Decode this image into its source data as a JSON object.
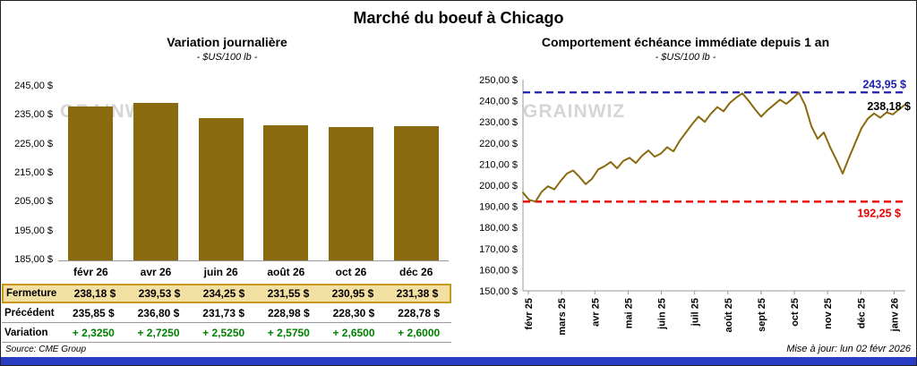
{
  "page": {
    "title": "Marché du boeuf à Chicago",
    "source": "Source: CME Group",
    "updated": "Mise à jour: lun 02 févr 2026",
    "accent_blue": "#2b3cc4",
    "watermark": "GRAINWIZ"
  },
  "chart_data": [
    {
      "type": "bar",
      "title": "Variation  journalière",
      "subtitle": "- $US/100 lb -",
      "categories": [
        "févr 26",
        "avr 26",
        "juin 26",
        "août 26",
        "oct 26",
        "déc 26"
      ],
      "values": [
        238.18,
        239.53,
        234.25,
        231.55,
        230.95,
        231.38
      ],
      "ylim": [
        185,
        245
      ],
      "ytick_labels": [
        "245,00 $",
        "235,00 $",
        "225,00 $",
        "215,00 $",
        "205,00 $",
        "195,00 $",
        "185,00 $"
      ],
      "bar_color": "#8a6a0f",
      "grid": false,
      "table": {
        "rows": [
          {
            "label": "Fermeture",
            "style": "highlight",
            "values": [
              "238,18  $",
              "239,53  $",
              "234,25  $",
              "231,55  $",
              "230,95  $",
              "231,38  $"
            ]
          },
          {
            "label": "Précédent",
            "style": "plain",
            "values": [
              "235,85  $",
              "236,80  $",
              "231,73  $",
              "228,98  $",
              "228,30  $",
              "228,78  $"
            ]
          },
          {
            "label": "Variation",
            "style": "green",
            "values": [
              "+ 2,3250",
              "+ 2,7250",
              "+ 2,5250",
              "+ 2,5750",
              "+ 2,6500",
              "+ 2,6000"
            ]
          }
        ]
      }
    },
    {
      "type": "line",
      "title": "Comportement  échéance  immédiate  depuis  1 an",
      "subtitle": "- $US/100 lb -",
      "x_labels": [
        "févr 25",
        "mars 25",
        "avr 25",
        "mai 25",
        "juin 25",
        "juil 25",
        "août 25",
        "sept 25",
        "oct 25",
        "nov 25",
        "déc 25",
        "janv 26"
      ],
      "values": [
        196.5,
        193.0,
        192.3,
        197.0,
        199.5,
        198.0,
        202.0,
        205.5,
        207.0,
        204.0,
        200.5,
        203.0,
        207.5,
        209.0,
        211.0,
        208.0,
        211.5,
        213.0,
        210.5,
        214.0,
        216.5,
        213.5,
        215.0,
        218.0,
        216.0,
        221.0,
        225.0,
        229.0,
        232.5,
        230.0,
        234.0,
        237.0,
        235.0,
        239.0,
        241.5,
        243.5,
        240.0,
        236.0,
        232.5,
        235.5,
        238.0,
        240.5,
        238.5,
        241.0,
        243.9,
        238.0,
        228.0,
        222.0,
        225.0,
        218.0,
        212.0,
        205.5,
        213.0,
        220.0,
        227.0,
        231.5,
        234.0,
        232.0,
        234.5,
        233.5,
        236.0,
        238.2
      ],
      "ylim": [
        150,
        250
      ],
      "ytick_labels": [
        "250,00 $",
        "240,00 $",
        "230,00 $",
        "220,00 $",
        "210,00 $",
        "200,00 $",
        "190,00 $",
        "180,00 $",
        "170,00 $",
        "160,00 $",
        "150,00 $"
      ],
      "line_color": "#8a6a0f",
      "grid": false,
      "ref_lines": [
        {
          "value": 243.95,
          "label": "243,95 $",
          "color": "#2020b0"
        },
        {
          "value": 192.25,
          "label": "192,25 $",
          "color": "#ee0000"
        }
      ],
      "last_label": "238,18 $",
      "last_value": 238.18
    }
  ]
}
